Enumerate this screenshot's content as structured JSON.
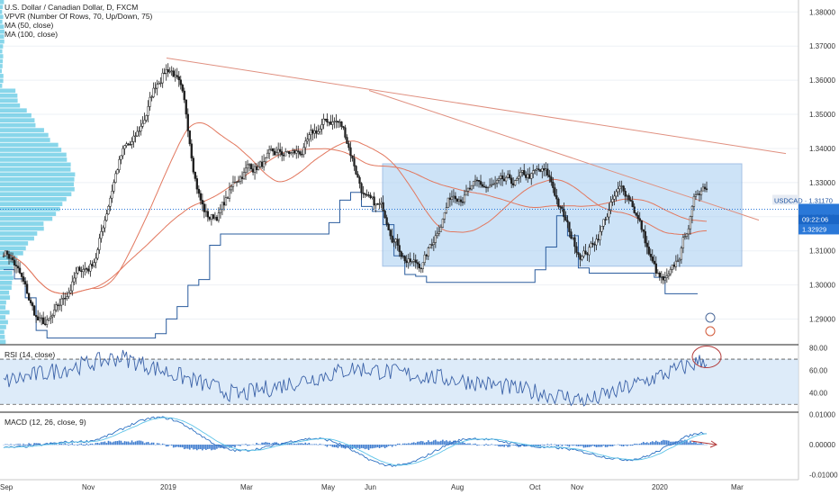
{
  "header": {
    "symbol_title": "U.S. Dollar / Canadian Dollar, D, FXCM",
    "indicators": [
      "VPVR (Number Of Rows, 70, Up/Down, 75)",
      "MA (50, close)",
      "MA (100, close)"
    ]
  },
  "rsi_panel": {
    "label": "RSI (14, close)"
  },
  "macd_panel": {
    "label": "MACD (12, 26, close, 9)"
  },
  "price_labels": {
    "symbol_tag": "USDCAD · 1.31170",
    "countdown": "09:22:06",
    "ma_value": "1.32929"
  },
  "colors": {
    "background": "#ffffff",
    "candle": "#1f1f1f",
    "ma50": "#e2785f",
    "ma100": "#e2785f",
    "range_box": "#a6cdf2",
    "vpvr": "#27b5d8",
    "rsi_line": "#3b62a8",
    "rsi_band": "#cfe3f7",
    "macd_line": "#2b6fc2",
    "signal_line": "#5dc3e8",
    "histogram": "#1e66c7",
    "price_tag": "#2a78d8",
    "annotation": "#b23a3a",
    "trendline": "#e09080"
  },
  "chart_data": [
    {
      "type": "candlestick",
      "symbol": "USDCAD",
      "interval": "D",
      "x_ticks": [
        "Sep",
        "Nov",
        "2019",
        "Mar",
        "May",
        "Jun",
        "Aug",
        "Oct",
        "Nov",
        "2020",
        "Mar"
      ],
      "y_ticks": [
        "1.38000",
        "1.37000",
        "1.36000",
        "1.35000",
        "1.34000",
        "1.33000",
        "1.32000",
        "1.31000",
        "1.30000",
        "1.29000"
      ],
      "ylim": [
        1.2825,
        1.3835
      ],
      "key_closes": [
        {
          "x": "Sep",
          "close": 1.31
        },
        {
          "x": "Oct",
          "close": 1.288
        },
        {
          "x": "Nov",
          "close": 1.305
        },
        {
          "x": "Dec",
          "close": 1.34
        },
        {
          "x": "2019",
          "close": 1.364
        },
        {
          "x": "Feb",
          "close": 1.32
        },
        {
          "x": "Mar",
          "close": 1.335
        },
        {
          "x": "Apr",
          "close": 1.338
        },
        {
          "x": "May",
          "close": 1.348
        },
        {
          "x": "Jun",
          "close": 1.322
        },
        {
          "x": "Jul",
          "close": 1.306
        },
        {
          "x": "Aug",
          "close": 1.328
        },
        {
          "x": "Sep",
          "close": 1.328
        },
        {
          "x": "Oct",
          "close": 1.332
        },
        {
          "x": "Nov",
          "close": 1.31
        },
        {
          "x": "Dec",
          "close": 1.327
        },
        {
          "x": "2020",
          "close": 1.3
        },
        {
          "x": "Feb",
          "close": 1.33
        }
      ],
      "range_box": {
        "upper": 1.3355,
        "lower": 1.3055
      },
      "last_price": 1.3117,
      "ma_value": 1.32929
    },
    {
      "type": "line",
      "name": "RSI (14, close)",
      "y_ticks": [
        "80.00",
        "60.00",
        "40.00"
      ],
      "ylim": [
        23,
        82
      ],
      "levels": [
        70,
        30
      ],
      "key_values": [
        {
          "x": "Sep",
          "value": 50
        },
        {
          "x": "2019",
          "value": 72
        },
        {
          "x": "Jun",
          "value": 38
        },
        {
          "x": "Aug",
          "value": 62
        },
        {
          "x": "Nov",
          "value": 50
        },
        {
          "x": "2020",
          "value": 33
        },
        {
          "x": "Feb",
          "value": 70
        }
      ]
    },
    {
      "type": "line",
      "name": "MACD (12, 26, close, 9)",
      "y_ticks": [
        "0.01000",
        "0.00000",
        "-0.01000"
      ],
      "ylim": [
        -0.0117,
        0.0105
      ],
      "key_values": [
        {
          "x": "Sep",
          "macd": -0.001
        },
        {
          "x": "Nov",
          "macd": 0.001
        },
        {
          "x": "2019",
          "macd": 0.009
        },
        {
          "x": "Mar",
          "macd": -0.002
        },
        {
          "x": "May",
          "macd": 0.002
        },
        {
          "x": "Jul",
          "macd": -0.007
        },
        {
          "x": "Sep",
          "macd": 0.002
        },
        {
          "x": "Nov",
          "macd": -0.001
        },
        {
          "x": "2020",
          "macd": -0.005
        },
        {
          "x": "Feb",
          "macd": 0.004
        }
      ]
    }
  ]
}
